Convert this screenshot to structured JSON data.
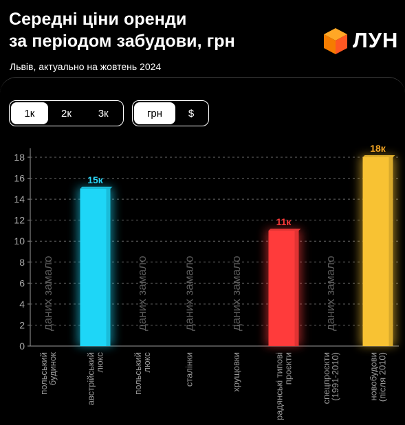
{
  "header": {
    "title_lines": [
      "Середні ціни оренди",
      "за періодом забудови, грн"
    ],
    "subtitle": "Львів, актуально на жовтень 2024",
    "logo_text": "ЛУН",
    "logo_icon": "orange-cube-icon"
  },
  "controls": {
    "zoom_options": [
      "1к",
      "2к",
      "3к"
    ],
    "zoom_selected": 0,
    "currency_options": [
      "грн",
      "$"
    ],
    "currency_selected": 0
  },
  "chart_data": {
    "type": "bar",
    "title": "Середні ціни оренди за періодом забудови, грн",
    "ylim": [
      0,
      18
    ],
    "yticks": [
      0,
      2,
      4,
      6,
      8,
      10,
      12,
      14,
      16,
      18
    ],
    "no_data_label": "даних замало",
    "categories": [
      {
        "lines": [
          "польський",
          "будинок"
        ]
      },
      {
        "lines": [
          "австрійський",
          "люкс"
        ]
      },
      {
        "lines": [
          "польський",
          "люкс"
        ]
      },
      {
        "lines": [
          "сталінки"
        ]
      },
      {
        "lines": [
          "хрущовки"
        ]
      },
      {
        "lines": [
          "радянські типові",
          "проєкти"
        ]
      },
      {
        "lines": [
          "спецпроєкти",
          "(1991-2010)"
        ]
      },
      {
        "lines": [
          "новобудови",
          "(після 2010)"
        ]
      }
    ],
    "values": [
      null,
      15,
      null,
      null,
      null,
      11,
      null,
      18
    ],
    "value_labels": [
      "",
      "15к",
      "",
      "",
      "",
      "11к",
      "",
      "18к"
    ],
    "bar_colors": [
      "",
      "#1ed6f7",
      "",
      "",
      "",
      "#ff3b3b",
      "",
      "#f8c233"
    ],
    "label_colors": [
      "",
      "#2ad4f5",
      "",
      "",
      "",
      "#ff3b3b",
      "",
      "#f5a623"
    ]
  }
}
